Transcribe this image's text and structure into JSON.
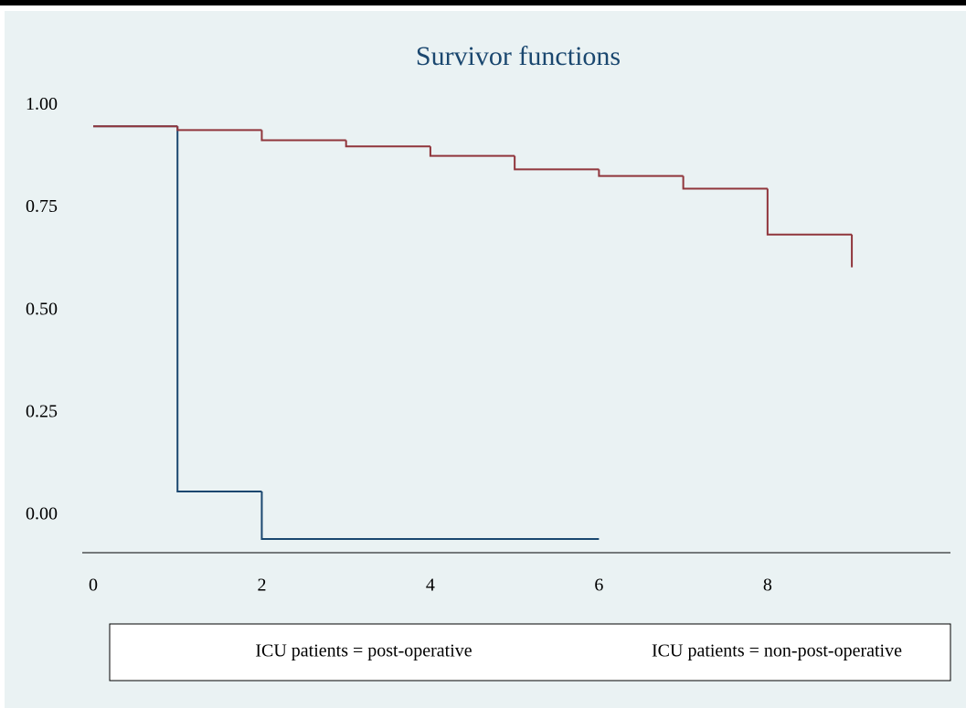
{
  "chart_data": {
    "type": "step",
    "title": "Survivor functions",
    "xlim": [
      -0.13,
      10.17
    ],
    "ylim": [
      -0.0915,
      1.05
    ],
    "xticks": [
      0,
      2,
      4,
      6,
      8
    ],
    "yticks": [
      {
        "value": 0,
        "label": "0.00"
      },
      {
        "value": 0.25,
        "label": "0.25"
      },
      {
        "value": 0.5,
        "label": "0.50"
      },
      {
        "value": 0.75,
        "label": "0.75"
      },
      {
        "value": 1,
        "label": "1.00"
      }
    ],
    "grid": false,
    "legend": "bottom",
    "series": [
      {
        "name": "ICU patients = post-operative",
        "color": "#1a476f",
        "x": [
          0,
          1,
          2,
          6
        ],
        "values": [
          0.949,
          0.058,
          -0.058,
          -0.058
        ]
      },
      {
        "name": "ICU patients = non-post-operative",
        "color": "#90353b",
        "x": [
          0,
          1,
          2,
          3,
          4,
          5,
          6,
          7,
          8,
          9
        ],
        "values": [
          0.949,
          0.94,
          0.915,
          0.9,
          0.877,
          0.844,
          0.828,
          0.797,
          0.685,
          0.605
        ]
      }
    ]
  }
}
